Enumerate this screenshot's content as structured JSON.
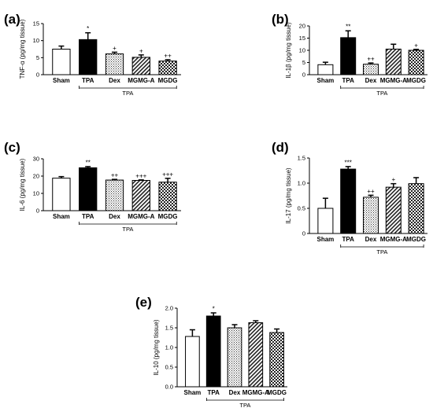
{
  "figure": {
    "panels": [
      "a",
      "b",
      "c",
      "d",
      "e"
    ]
  },
  "chart_data": [
    {
      "panel_label": "(a)",
      "type": "bar",
      "ylabel": "TNF-α (pg/mg tissue)",
      "ylim": [
        0,
        15
      ],
      "yticks": [
        0,
        5,
        10,
        15
      ],
      "categories": [
        "Sham",
        "TPA",
        "Dex",
        "MGMG-A",
        "MGDG"
      ],
      "values": [
        7.5,
        10.3,
        6.1,
        5.1,
        4.0
      ],
      "errors": [
        0.9,
        2.0,
        0.5,
        0.7,
        0.4
      ],
      "significance": [
        "",
        "*",
        "+",
        "+",
        "++"
      ],
      "group_label": "TPA",
      "group_range": [
        1,
        4
      ],
      "patterns": [
        "white",
        "black",
        "dots",
        "hatch",
        "checker"
      ]
    },
    {
      "panel_label": "(b)",
      "type": "bar",
      "ylabel": "IL-1β (pg/mg tissue)",
      "ylim": [
        0,
        20
      ],
      "yticks": [
        0,
        5,
        10,
        15,
        20
      ],
      "categories": [
        "Sham",
        "TPA",
        "Dex",
        "MGMG-A",
        "MGDG"
      ],
      "values": [
        4.1,
        15.2,
        4.3,
        10.5,
        10.0
      ],
      "errors": [
        1.0,
        2.8,
        0.5,
        2.0,
        0.4
      ],
      "significance": [
        "",
        "**",
        "++",
        "",
        "+"
      ],
      "group_label": "TPA",
      "group_range": [
        1,
        4
      ],
      "patterns": [
        "white",
        "black",
        "dots",
        "hatch",
        "checker"
      ]
    },
    {
      "panel_label": "(c)",
      "type": "bar",
      "ylabel": "IL-6 (pg/mg tissue)",
      "ylim": [
        0,
        30
      ],
      "yticks": [
        0,
        10,
        20,
        30
      ],
      "categories": [
        "Sham",
        "TPA",
        "Dex",
        "MGMG-A",
        "MGDG"
      ],
      "values": [
        18.8,
        24.8,
        17.7,
        17.5,
        16.5
      ],
      "errors": [
        0.9,
        0.7,
        0.4,
        0.3,
        2.2
      ],
      "significance": [
        "",
        "**",
        "++",
        "+++",
        "+++"
      ],
      "group_label": "TPA",
      "group_range": [
        1,
        4
      ],
      "patterns": [
        "white",
        "black",
        "dots",
        "hatch",
        "checker"
      ]
    },
    {
      "panel_label": "(d)",
      "type": "bar",
      "ylabel": "IL-17 (pg/mg tissue)",
      "ylim": [
        0,
        1.5
      ],
      "yticks": [
        0,
        0.5,
        1.0,
        1.5
      ],
      "ytick_labels": [
        "0",
        "0.5",
        "1.0",
        "1.5"
      ],
      "categories": [
        "Sham",
        "TPA",
        "Dex",
        "MGMG-A",
        "MGDG"
      ],
      "values": [
        0.5,
        1.28,
        0.72,
        0.92,
        0.99
      ],
      "errors": [
        0.2,
        0.05,
        0.04,
        0.07,
        0.12
      ],
      "significance": [
        "",
        "***",
        "++",
        "+",
        ""
      ],
      "group_label": "TPA",
      "group_range": [
        1,
        4
      ],
      "patterns": [
        "white",
        "black",
        "dots",
        "hatch",
        "checker"
      ]
    },
    {
      "panel_label": "(e)",
      "type": "bar",
      "ylabel": "IL-10 (pg/mg tissue)",
      "ylim": [
        0,
        2.0
      ],
      "yticks": [
        0,
        0.5,
        1.0,
        1.5,
        2.0
      ],
      "ytick_labels": [
        "0.0",
        "0.5",
        "1.0",
        "1.5",
        "2.0"
      ],
      "categories": [
        "Sham",
        "TPA",
        "Dex",
        "MGMG-A",
        "MGDG"
      ],
      "values": [
        1.28,
        1.8,
        1.5,
        1.63,
        1.38
      ],
      "errors": [
        0.17,
        0.08,
        0.08,
        0.05,
        0.09
      ],
      "significance": [
        "",
        "*",
        "",
        "",
        ""
      ],
      "group_label": "TPA",
      "group_range": [
        1,
        4
      ],
      "patterns": [
        "white",
        "black",
        "dots",
        "hatch",
        "checker"
      ]
    }
  ]
}
